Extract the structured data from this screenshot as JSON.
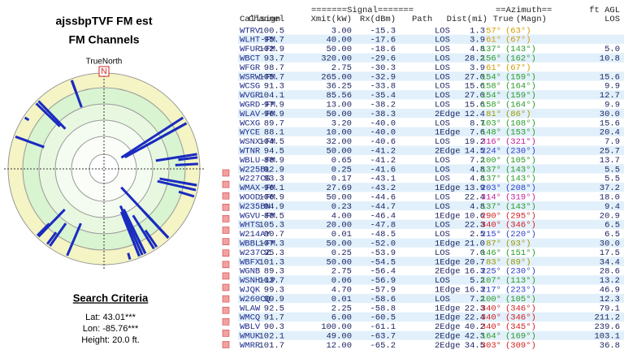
{
  "left_panel": {
    "title": "ajssbpTVF FM est",
    "subtitle": "FM Channels",
    "north_label": "TrueNorth",
    "north_marker": "N",
    "criteria_title": "Search Criteria",
    "lat": "Lat: 43.01***",
    "lon": "Lon: -85.76***",
    "height": "Height: 20.0 ft."
  },
  "table": {
    "group_headers": [
      "=======Signal=======",
      "==Azimuth==",
      "ft AGL"
    ],
    "columns": [
      "Callsign",
      "Channel",
      "Xmit(kW)",
      "Rx(dBm)",
      "Path",
      "Dist(mi)",
      "True",
      "(Magn)",
      "LOS"
    ],
    "rows": [
      [
        "WTRV",
        "100.5",
        "3.00",
        "-15.3",
        "LOS",
        "1.3",
        "57°",
        "(63°)",
        ""
      ],
      [
        "WLHT-FM",
        "95.7",
        "40.00",
        "-17.6",
        "LOS",
        "3.9",
        "61°",
        "(67°)",
        ""
      ],
      [
        "WFUR-FM",
        "102.9",
        "50.00",
        "-18.6",
        "LOS",
        "4.8",
        "137°",
        "(143°)",
        "5.0"
      ],
      [
        "WBCT",
        "93.7",
        "320.00",
        "-29.6",
        "LOS",
        "28.2",
        "156°",
        "(162°)",
        "10.8"
      ],
      [
        "WFGR",
        "98.7",
        "2.75",
        "-30.3",
        "LOS",
        "3.9",
        "61°",
        "(67°)",
        ""
      ],
      [
        "WSRW-FM",
        "105.7",
        "265.00",
        "-32.9",
        "LOS",
        "27.0",
        "154°",
        "(159°)",
        "15.6"
      ],
      [
        "WCSG",
        "91.3",
        "36.25",
        "-33.8",
        "LOS",
        "15.6",
        "158°",
        "(164°)",
        "9.9"
      ],
      [
        "WVGR",
        "104.1",
        "85.56",
        "-35.4",
        "LOS",
        "27.0",
        "154°",
        "(159°)",
        "12.7"
      ],
      [
        "WGRD-FM",
        "97.9",
        "13.00",
        "-38.2",
        "LOS",
        "15.6",
        "158°",
        "(164°)",
        "9.9"
      ],
      [
        "WLAV-FM",
        "96.9",
        "50.00",
        "-38.3",
        "2Edge",
        "12.4",
        "81°",
        "(86°)",
        "30.0"
      ],
      [
        "WCXG",
        "89.7",
        "3.20",
        "-40.0",
        "LOS",
        "8.7",
        "103°",
        "(108°)",
        "15.6"
      ],
      [
        "WYCE",
        "88.1",
        "10.00",
        "-40.0",
        "1Edge",
        "7.6",
        "148°",
        "(153°)",
        "20.4"
      ],
      [
        "WSNX-FM",
        "104.5",
        "32.00",
        "-40.6",
        "LOS",
        "19.2",
        "316°",
        "(321°)",
        "7.9"
      ],
      [
        "WTNR",
        "94.5",
        "50.00",
        "-41.2",
        "2Edge",
        "14.5",
        "224°",
        "(230°)",
        "25.7"
      ],
      [
        "WBLU-FM",
        "88.9",
        "0.65",
        "-41.2",
        "LOS",
        "7.2",
        "100°",
        "(105°)",
        "13.7"
      ],
      [
        "W225BL",
        "92.9",
        "0.25",
        "-41.6",
        "LOS",
        "4.8",
        "137°",
        "(143°)",
        "5.5"
      ],
      [
        "W227CG",
        "93.3",
        "0.17",
        "-43.1",
        "LOS",
        "4.8",
        "137°",
        "(143°)",
        "5.5"
      ],
      [
        "WMAX-FM",
        "96.1",
        "27.69",
        "-43.2",
        "1Edge",
        "13.9",
        "203°",
        "(208°)",
        "37.2"
      ],
      [
        "WOOD-FM",
        "106.9",
        "50.00",
        "-44.6",
        "LOS",
        "22.4",
        "314°",
        "(319°)",
        "18.0"
      ],
      [
        "W235BN",
        "94.9",
        "0.23",
        "-44.7",
        "LOS",
        "4.8",
        "137°",
        "(143°)",
        "9.4"
      ],
      [
        "WGVU-FM",
        "88.5",
        "4.00",
        "-46.4",
        "1Edge",
        "10.6",
        "290°",
        "(295°)",
        "20.9"
      ],
      [
        "WHTS",
        "105.3",
        "20.00",
        "-47.8",
        "LOS",
        "22.3",
        "340°",
        "(346°)",
        "6.5"
      ],
      [
        "W214AY",
        "90.7",
        "0.01",
        "-48.5",
        "LOS",
        "2.5",
        "215°",
        "(220°)",
        "6.5"
      ],
      [
        "WBBL-FM",
        "107.3",
        "50.00",
        "-52.0",
        "1Edge",
        "21.0",
        "87°",
        "(93°)",
        "30.0"
      ],
      [
        "W237CZ",
        "95.3",
        "0.25",
        "-53.9",
        "LOS",
        "7.0",
        "146°",
        "(151°)",
        "17.5"
      ],
      [
        "WBFX",
        "101.3",
        "50.00",
        "-54.5",
        "1Edge",
        "20.7",
        "83°",
        "(89°)",
        "34.4"
      ],
      [
        "WGNB",
        "89.3",
        "2.75",
        "-56.4",
        "2Edge",
        "16.3",
        "225°",
        "(230°)",
        "28.6"
      ],
      [
        "WSNH-LP",
        "103.7",
        "0.06",
        "-56.9",
        "LOS",
        "5.2",
        "107°",
        "(113°)",
        "13.2"
      ],
      [
        "WJQK",
        "99.3",
        "4.70",
        "-57.9",
        "1Edge",
        "16.3",
        "217°",
        "(223°)",
        "46.9"
      ],
      [
        "W260CQ",
        "99.9",
        "0.01",
        "-58.6",
        "LOS",
        "7.2",
        "100°",
        "(105°)",
        "12.3"
      ],
      [
        "WLAW",
        "92.5",
        "2.25",
        "-58.8",
        "1Edge",
        "22.3",
        "340°",
        "(346°)",
        "79.1"
      ],
      [
        "WMCQ",
        "91.7",
        "6.00",
        "-60.5",
        "1Edge",
        "22.4",
        "340°",
        "(346°)",
        "211.2"
      ],
      [
        "WBLV",
        "90.3",
        "100.00",
        "-61.1",
        "2Edge",
        "40.2",
        "340°",
        "(345°)",
        "239.6"
      ],
      [
        "WMUK",
        "102.1",
        "49.00",
        "-63.7",
        "2Edge",
        "42.3",
        "164°",
        "(169°)",
        "103.1"
      ],
      [
        "WMRR",
        "101.7",
        "12.00",
        "-65.2",
        "2Edge",
        "34.5",
        "303°",
        "(309°)",
        "36.8"
      ]
    ],
    "az_colors": [
      "#d49a00",
      "#d49a00",
      "#2a9a2a",
      "#2a9a2a",
      "#d49a00",
      "#2a9a2a",
      "#2a9a2a",
      "#2a9a2a",
      "#2a9a2a",
      "#9a9a00",
      "#2a9a2a",
      "#2a9a2a",
      "#c0209a",
      "#2a3fc8",
      "#2a9a2a",
      "#2a9a2a",
      "#2a9a2a",
      "#2a3fc8",
      "#c0209a",
      "#2a9a2a",
      "#d02020",
      "#d02020",
      "#2a3fc8",
      "#9a9a00",
      "#2a9a2a",
      "#9a9a00",
      "#2a3fc8",
      "#2a9a2a",
      "#2a3fc8",
      "#2a9a2a",
      "#d02020",
      "#d02020",
      "#d02020",
      "#2a9a2a",
      "#d02020"
    ]
  }
}
